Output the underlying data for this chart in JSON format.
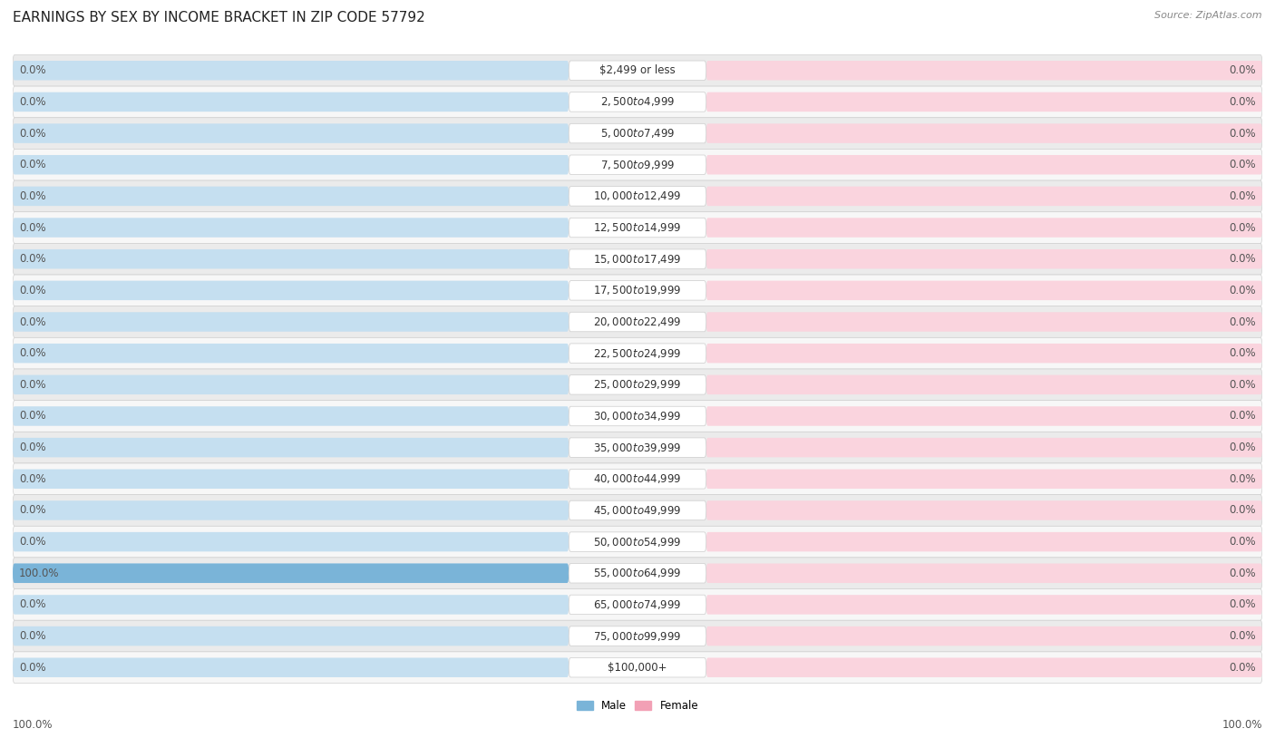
{
  "title": "EARNINGS BY SEX BY INCOME BRACKET IN ZIP CODE 57792",
  "source": "Source: ZipAtlas.com",
  "categories": [
    "$2,499 or less",
    "$2,500 to $4,999",
    "$5,000 to $7,499",
    "$7,500 to $9,999",
    "$10,000 to $12,499",
    "$12,500 to $14,999",
    "$15,000 to $17,499",
    "$17,500 to $19,999",
    "$20,000 to $22,499",
    "$22,500 to $24,999",
    "$25,000 to $29,999",
    "$30,000 to $34,999",
    "$35,000 to $39,999",
    "$40,000 to $44,999",
    "$45,000 to $49,999",
    "$50,000 to $54,999",
    "$55,000 to $64,999",
    "$65,000 to $74,999",
    "$75,000 to $99,999",
    "$100,000+"
  ],
  "male_values": [
    0.0,
    0.0,
    0.0,
    0.0,
    0.0,
    0.0,
    0.0,
    0.0,
    0.0,
    0.0,
    0.0,
    0.0,
    0.0,
    0.0,
    0.0,
    0.0,
    100.0,
    0.0,
    0.0,
    0.0
  ],
  "female_values": [
    0.0,
    0.0,
    0.0,
    0.0,
    0.0,
    0.0,
    0.0,
    0.0,
    0.0,
    0.0,
    0.0,
    0.0,
    0.0,
    0.0,
    0.0,
    0.0,
    0.0,
    0.0,
    0.0,
    0.0
  ],
  "male_color": "#7ab4d8",
  "female_color": "#f2a0b5",
  "male_color_light": "#c5dff0",
  "female_color_light": "#fad4de",
  "row_bg_color_odd": "#ebebeb",
  "row_bg_color_even": "#f7f7f7",
  "center_pill_color": "#ffffff",
  "label_bottom_left": "100.0%",
  "label_bottom_right": "100.0%",
  "xlim": 100,
  "legend_male": "Male",
  "legend_female": "Female",
  "title_fontsize": 11,
  "label_fontsize": 8.5,
  "category_fontsize": 8.5,
  "value_fontsize": 8.5
}
